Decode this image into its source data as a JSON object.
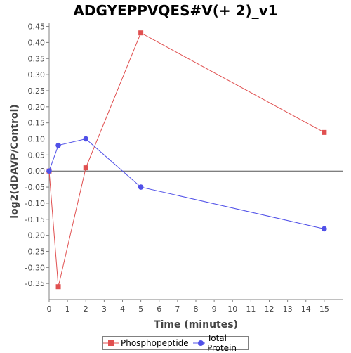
{
  "chart_data": {
    "type": "line",
    "title": "ADGYEPPVQES#V(+ 2)_v1",
    "xlabel": "Time (minutes)",
    "ylabel": "log2(dDAVP/Control)",
    "xlim": [
      0,
      16
    ],
    "ylim": [
      -0.4,
      0.46
    ],
    "xticks": [
      "0",
      "1",
      "2",
      "3",
      "4",
      "5",
      "6",
      "7",
      "8",
      "9",
      "10",
      "11",
      "12",
      "13",
      "14",
      "15"
    ],
    "yticks": [
      "0.45",
      "0.40",
      "0.35",
      "0.30",
      "0.25",
      "0.20",
      "0.15",
      "0.10",
      "0.05",
      "0.00",
      "-0.05",
      "-0.10",
      "-0.15",
      "-0.20",
      "-0.25",
      "-0.30",
      "-0.35"
    ],
    "grid": false,
    "legend_position": "bottom",
    "series": [
      {
        "name": "Phosphopeptide",
        "color": "#e05050",
        "marker": "square",
        "x": [
          0,
          0.5,
          2,
          5,
          15
        ],
        "y": [
          0.0,
          -0.36,
          0.01,
          0.43,
          0.12
        ]
      },
      {
        "name": "Total Protein",
        "color": "#5050e8",
        "marker": "circle",
        "x": [
          0,
          0.5,
          2,
          5,
          15
        ],
        "y": [
          0.0,
          0.08,
          0.1,
          -0.05,
          -0.18
        ]
      }
    ]
  }
}
